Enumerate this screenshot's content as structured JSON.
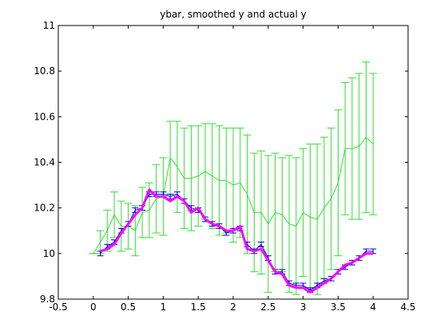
{
  "chart_data": {
    "type": "line",
    "title": "ybar, smoothed y and actual y",
    "xlabel": "",
    "ylabel": "",
    "xlim": [
      -0.5,
      4.5
    ],
    "ylim": [
      9.8,
      11
    ],
    "xticks": [
      -0.5,
      0,
      0.5,
      1,
      1.5,
      2,
      2.5,
      3,
      3.5,
      4,
      4.5
    ],
    "xtick_labels": [
      "-0.5",
      "0",
      "0.5",
      "1",
      "1.5",
      "2",
      "2.5",
      "3",
      "3.5",
      "4",
      "4.5"
    ],
    "yticks": [
      9.8,
      10,
      10.2,
      10.4,
      10.6,
      10.8,
      11
    ],
    "ytick_labels": [
      "9.8",
      "10",
      "10.2",
      "10.4",
      "10.6",
      "10.8",
      "11"
    ],
    "grid": false,
    "legend": "none",
    "series": [
      {
        "color": "#33dd33",
        "style": "line-with-errorbars",
        "x": [
          0,
          0.1,
          0.2,
          0.3,
          0.4,
          0.5,
          0.6,
          0.7,
          0.8,
          0.9,
          1.0,
          1.1,
          1.2,
          1.3,
          1.4,
          1.5,
          1.6,
          1.7,
          1.8,
          1.9,
          2.0,
          2.1,
          2.2,
          2.3,
          2.4,
          2.5,
          2.6,
          2.7,
          2.8,
          2.9,
          3.0,
          3.1,
          3.2,
          3.3,
          3.4,
          3.5,
          3.6,
          3.7,
          3.8,
          3.9,
          4.0
        ],
        "y": [
          10.0,
          10.05,
          10.1,
          10.17,
          10.12,
          10.12,
          10.1,
          10.18,
          10.19,
          10.24,
          10.25,
          10.42,
          10.38,
          10.33,
          10.33,
          10.34,
          10.36,
          10.34,
          10.32,
          10.32,
          10.3,
          10.31,
          10.26,
          10.18,
          10.18,
          10.13,
          10.18,
          10.17,
          10.13,
          10.12,
          10.18,
          10.16,
          10.15,
          10.2,
          10.24,
          10.31,
          10.46,
          10.46,
          10.47,
          10.51,
          10.48
        ],
        "err": [
          0.0,
          0.05,
          0.09,
          0.1,
          0.11,
          0.1,
          0.11,
          0.11,
          0.12,
          0.15,
          0.17,
          0.16,
          0.2,
          0.22,
          0.23,
          0.22,
          0.21,
          0.23,
          0.24,
          0.23,
          0.25,
          0.24,
          0.26,
          0.26,
          0.27,
          0.3,
          0.26,
          0.25,
          0.3,
          0.3,
          0.28,
          0.32,
          0.33,
          0.31,
          0.31,
          0.32,
          0.29,
          0.31,
          0.32,
          0.33,
          0.31
        ]
      },
      {
        "color": "#0000cc",
        "style": "line-with-errorbars",
        "x": [
          0.1,
          0.2,
          0.3,
          0.4,
          0.5,
          0.6,
          0.7,
          0.8,
          0.9,
          1.0,
          1.1,
          1.2,
          1.3,
          1.4,
          1.5,
          1.6,
          1.7,
          1.8,
          1.9,
          2.0,
          2.1,
          2.2,
          2.3,
          2.4,
          2.5,
          2.6,
          2.7,
          2.8,
          2.9,
          3.0,
          3.1,
          3.2,
          3.3,
          3.4,
          3.5,
          3.6,
          3.7,
          3.8,
          3.9,
          4.0
        ],
        "y": [
          10.0,
          10.03,
          10.05,
          10.1,
          10.13,
          10.19,
          10.2,
          10.26,
          10.26,
          10.26,
          10.25,
          10.26,
          10.23,
          10.2,
          10.19,
          10.15,
          10.13,
          10.12,
          10.09,
          10.1,
          10.11,
          10.04,
          10.01,
          10.04,
          9.98,
          9.92,
          9.92,
          9.87,
          9.86,
          9.86,
          9.84,
          9.86,
          9.88,
          9.89,
          9.92,
          9.94,
          9.96,
          9.98,
          10.01,
          10.01
        ],
        "err": [
          0.01,
          0.01,
          0.01,
          0.01,
          0.01,
          0.01,
          0.01,
          0.01,
          0.01,
          0.01,
          0.01,
          0.01,
          0.01,
          0.01,
          0.01,
          0.01,
          0.01,
          0.01,
          0.01,
          0.01,
          0.01,
          0.01,
          0.01,
          0.01,
          0.01,
          0.01,
          0.01,
          0.01,
          0.01,
          0.01,
          0.01,
          0.01,
          0.01,
          0.01,
          0.01,
          0.01,
          0.01,
          0.01,
          0.01,
          0.01
        ]
      },
      {
        "color": "#ff00ff",
        "style": "thick-line",
        "x": [
          0.1,
          0.2,
          0.3,
          0.4,
          0.5,
          0.6,
          0.7,
          0.8,
          0.9,
          1.0,
          1.1,
          1.2,
          1.3,
          1.4,
          1.5,
          1.6,
          1.7,
          1.8,
          1.9,
          2.0,
          2.1,
          2.2,
          2.3,
          2.4,
          2.5,
          2.6,
          2.7,
          2.8,
          2.9,
          3.0,
          3.1,
          3.2,
          3.3,
          3.4,
          3.5,
          3.6,
          3.7,
          3.8,
          3.9,
          4.0
        ],
        "y": [
          10.01,
          10.02,
          10.04,
          10.09,
          10.13,
          10.17,
          10.2,
          10.28,
          10.25,
          10.25,
          10.23,
          10.25,
          10.23,
          10.18,
          10.2,
          10.15,
          10.13,
          10.12,
          10.1,
          10.1,
          10.12,
          10.02,
          10.01,
          10.02,
          9.97,
          9.92,
          9.91,
          9.86,
          9.85,
          9.85,
          9.83,
          9.85,
          9.87,
          9.89,
          9.92,
          9.95,
          9.96,
          9.98,
          10.0,
          10.0
        ]
      }
    ]
  }
}
